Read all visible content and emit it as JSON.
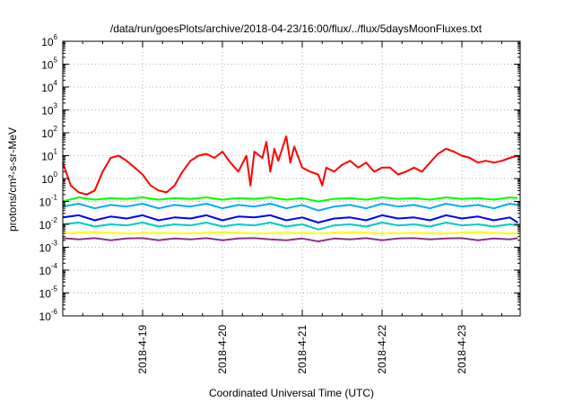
{
  "chart_data": {
    "type": "line",
    "title": "/data/run/goesPlots/archive/2018-04-23/16:00/flux/../flux/5daysMoonFluxes.txt",
    "xlabel": "Coordinated Universal Time (UTC)",
    "ylabel": "protons/cm²-s-sr-MeV",
    "y_scale": "log",
    "ylim": [
      1e-06,
      1000000.0
    ],
    "y_ticks": [
      {
        "base": "10",
        "exp": "6"
      },
      {
        "base": "10",
        "exp": "5"
      },
      {
        "base": "10",
        "exp": "4"
      },
      {
        "base": "10",
        "exp": "3"
      },
      {
        "base": "10",
        "exp": "2"
      },
      {
        "base": "10",
        "exp": "1"
      },
      {
        "base": "10",
        "exp": "0"
      },
      {
        "base": "10",
        "exp": "-1"
      },
      {
        "base": "10",
        "exp": "-2"
      },
      {
        "base": "10",
        "exp": "-3"
      },
      {
        "base": "10",
        "exp": "-4"
      },
      {
        "base": "10",
        "exp": "-5"
      },
      {
        "base": "10",
        "exp": "-6"
      }
    ],
    "x_ticks": [
      "2018-4-19",
      "2018-4-20",
      "2018-4-21",
      "2018-4-22",
      "2018-4-23"
    ],
    "xlim_days": [
      18.0,
      23.73
    ],
    "grid": true,
    "series": [
      {
        "color": "#ff0000",
        "x": [
          18.0,
          18.1,
          18.2,
          18.3,
          18.4,
          18.5,
          18.6,
          18.7,
          18.8,
          18.9,
          19.0,
          19.1,
          19.2,
          19.3,
          19.4,
          19.5,
          19.6,
          19.7,
          19.8,
          19.9,
          20.0,
          20.1,
          20.2,
          20.3,
          20.35,
          20.4,
          20.5,
          20.55,
          20.6,
          20.65,
          20.7,
          20.8,
          20.85,
          20.9,
          21.0,
          21.1,
          21.2,
          21.25,
          21.3,
          21.4,
          21.5,
          21.6,
          21.7,
          21.8,
          21.9,
          22.0,
          22.1,
          22.2,
          22.3,
          22.4,
          22.5,
          22.6,
          22.7,
          22.8,
          22.9,
          23.0,
          23.1,
          23.2,
          23.3,
          23.4,
          23.5,
          23.6,
          23.7
        ],
        "values": [
          5,
          0.5,
          0.25,
          0.2,
          0.3,
          2,
          8,
          10,
          6,
          3,
          1.5,
          0.5,
          0.3,
          0.25,
          0.5,
          2,
          6,
          10,
          12,
          8,
          15,
          5,
          2,
          10,
          0.5,
          15,
          8,
          40,
          2,
          20,
          6,
          70,
          5,
          25,
          3,
          2,
          1.5,
          0.5,
          3,
          2,
          4,
          6,
          3,
          5,
          2,
          3,
          3,
          1.5,
          2,
          3,
          2,
          5,
          12,
          20,
          15,
          10,
          8,
          5,
          6,
          5,
          6,
          8,
          10
        ]
      },
      {
        "color": "#00ff00",
        "x": [
          18.0,
          18.2,
          18.4,
          18.6,
          18.8,
          19.0,
          19.2,
          19.4,
          19.6,
          19.8,
          20.0,
          20.2,
          20.4,
          20.6,
          20.8,
          21.0,
          21.2,
          21.4,
          21.6,
          21.8,
          22.0,
          22.2,
          22.4,
          22.6,
          22.8,
          23.0,
          23.2,
          23.4,
          23.6,
          23.7
        ],
        "values": [
          0.1,
          0.15,
          0.12,
          0.14,
          0.13,
          0.15,
          0.12,
          0.14,
          0.13,
          0.15,
          0.12,
          0.14,
          0.13,
          0.15,
          0.12,
          0.14,
          0.1,
          0.13,
          0.14,
          0.12,
          0.15,
          0.13,
          0.14,
          0.12,
          0.15,
          0.13,
          0.14,
          0.12,
          0.15,
          0.14
        ]
      },
      {
        "color": "#00aaff",
        "x": [
          18.0,
          18.2,
          18.4,
          18.6,
          18.8,
          19.0,
          19.2,
          19.4,
          19.6,
          19.8,
          20.0,
          20.2,
          20.4,
          20.6,
          20.8,
          21.0,
          21.2,
          21.4,
          21.6,
          21.8,
          22.0,
          22.2,
          22.4,
          22.6,
          22.8,
          23.0,
          23.2,
          23.4,
          23.6,
          23.7
        ],
        "values": [
          0.06,
          0.08,
          0.05,
          0.07,
          0.06,
          0.08,
          0.05,
          0.07,
          0.06,
          0.08,
          0.05,
          0.07,
          0.06,
          0.08,
          0.05,
          0.07,
          0.04,
          0.06,
          0.07,
          0.05,
          0.08,
          0.06,
          0.07,
          0.05,
          0.08,
          0.06,
          0.07,
          0.05,
          0.08,
          0.07
        ]
      },
      {
        "color": "#0000ff",
        "x": [
          18.0,
          18.2,
          18.4,
          18.6,
          18.8,
          19.0,
          19.2,
          19.4,
          19.6,
          19.8,
          20.0,
          20.2,
          20.4,
          20.6,
          20.8,
          21.0,
          21.2,
          21.4,
          21.6,
          21.8,
          22.0,
          22.2,
          22.4,
          22.6,
          22.8,
          23.0,
          23.2,
          23.4,
          23.6,
          23.7
        ],
        "values": [
          0.02,
          0.025,
          0.015,
          0.022,
          0.018,
          0.025,
          0.015,
          0.02,
          0.018,
          0.025,
          0.015,
          0.022,
          0.02,
          0.025,
          0.015,
          0.02,
          0.012,
          0.018,
          0.02,
          0.015,
          0.025,
          0.018,
          0.02,
          0.015,
          0.025,
          0.018,
          0.022,
          0.015,
          0.02,
          0.012
        ]
      },
      {
        "color": "#00cccc",
        "x": [
          18.0,
          18.2,
          18.4,
          18.6,
          18.8,
          19.0,
          19.2,
          19.4,
          19.6,
          19.8,
          20.0,
          20.2,
          20.4,
          20.6,
          20.8,
          21.0,
          21.2,
          21.4,
          21.6,
          21.8,
          22.0,
          22.2,
          22.4,
          22.6,
          22.8,
          23.0,
          23.2,
          23.4,
          23.6,
          23.7
        ],
        "values": [
          0.01,
          0.012,
          0.008,
          0.01,
          0.009,
          0.012,
          0.008,
          0.01,
          0.009,
          0.012,
          0.008,
          0.01,
          0.009,
          0.012,
          0.008,
          0.01,
          0.006,
          0.009,
          0.01,
          0.008,
          0.012,
          0.009,
          0.01,
          0.008,
          0.012,
          0.009,
          0.01,
          0.008,
          0.01,
          0.009
        ]
      },
      {
        "color": "#ffff00",
        "x": [
          18.0,
          18.4,
          18.8,
          19.2,
          19.6,
          20.0,
          20.4,
          20.8,
          21.2,
          21.6,
          22.0,
          22.4,
          22.8,
          23.2,
          23.6,
          23.7
        ],
        "values": [
          0.004,
          0.0045,
          0.004,
          0.0042,
          0.004,
          0.0045,
          0.004,
          0.0042,
          0.004,
          0.0045,
          0.004,
          0.0042,
          0.004,
          0.0045,
          0.004,
          0.0042
        ]
      },
      {
        "color": "#883388",
        "x": [
          18.0,
          18.2,
          18.4,
          18.6,
          18.8,
          19.0,
          19.2,
          19.4,
          19.6,
          19.8,
          20.0,
          20.2,
          20.4,
          20.6,
          20.8,
          21.0,
          21.2,
          21.4,
          21.6,
          21.8,
          22.0,
          22.2,
          22.4,
          22.6,
          22.8,
          23.0,
          23.2,
          23.4,
          23.6,
          23.7
        ],
        "values": [
          0.0025,
          0.0022,
          0.0025,
          0.002,
          0.0024,
          0.0025,
          0.002,
          0.0024,
          0.0022,
          0.0025,
          0.002,
          0.0024,
          0.0025,
          0.0022,
          0.002,
          0.0024,
          0.0018,
          0.0024,
          0.0022,
          0.0025,
          0.002,
          0.0024,
          0.0025,
          0.0022,
          0.0024,
          0.0025,
          0.002,
          0.0024,
          0.0022,
          0.0025
        ]
      }
    ]
  }
}
